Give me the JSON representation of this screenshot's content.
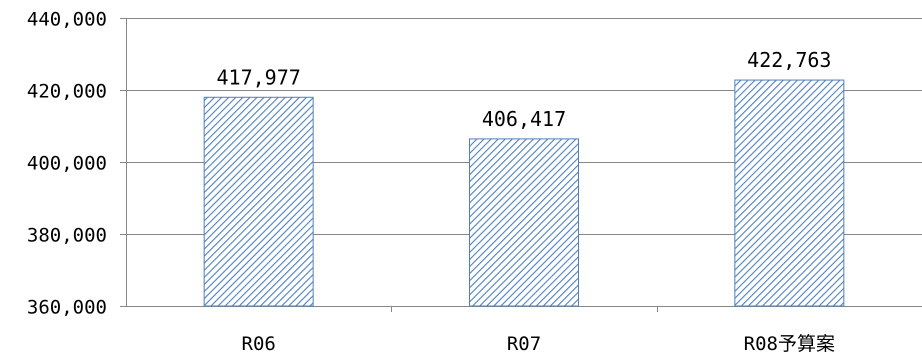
{
  "chart_data": {
    "type": "bar",
    "categories": [
      "R06",
      "R07",
      "R08予算案"
    ],
    "values": [
      417977,
      406417,
      422763
    ],
    "data_labels": [
      "417,977",
      "406,417",
      "422,763"
    ],
    "yticks": [
      "360,000",
      "380,000",
      "400,000",
      "420,000",
      "440,000"
    ],
    "ylim": [
      360000,
      440000
    ],
    "grid": true,
    "legend": "none",
    "bar_fill_color": "#4f81bd",
    "grid_color": "#878787"
  }
}
